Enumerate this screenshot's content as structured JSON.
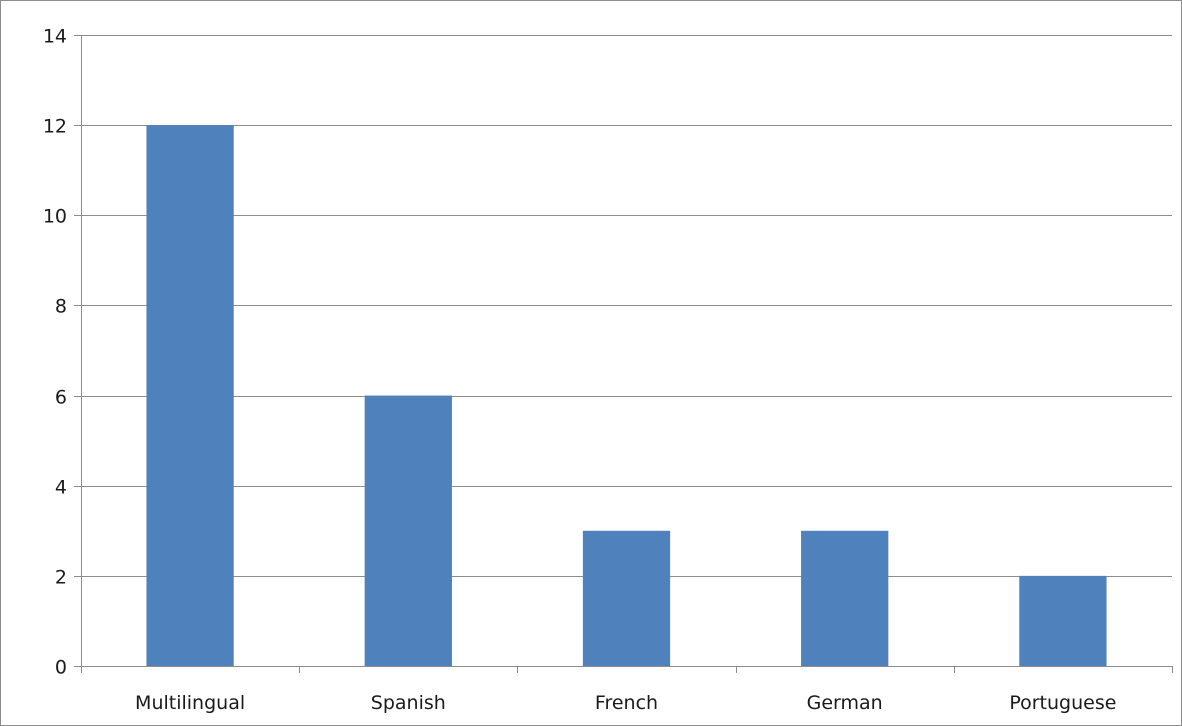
{
  "chart_data": {
    "type": "bar",
    "categories": [
      "Multilingual",
      "Spanish",
      "French",
      "German",
      "Portuguese"
    ],
    "values": [
      12,
      6,
      3,
      3,
      2
    ],
    "title": "",
    "xlabel": "",
    "ylabel": "",
    "ylim": [
      0,
      14
    ],
    "yticks": [
      0,
      2,
      4,
      6,
      8,
      10,
      12,
      14
    ],
    "grid": true,
    "legend": "none",
    "colors": {
      "bar": "#4f81bd",
      "grid": "#8c8c8c",
      "axis": "#8c8c8c",
      "text": "#1a1a1a"
    }
  }
}
